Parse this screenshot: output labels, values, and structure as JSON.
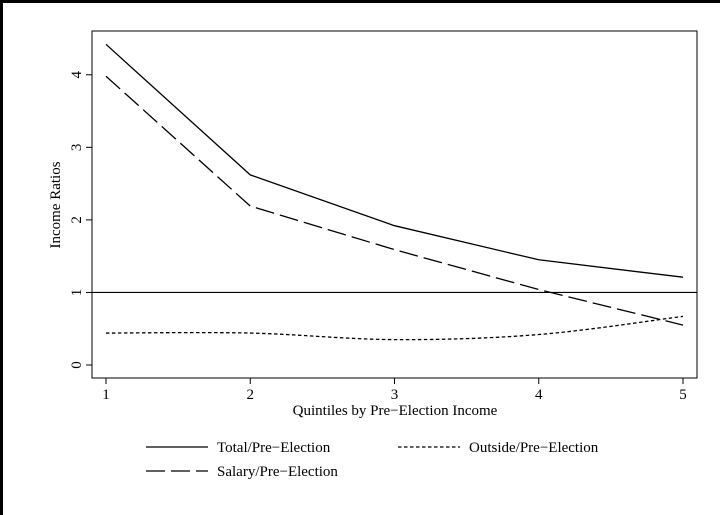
{
  "chart_data": {
    "type": "line",
    "title": "",
    "xlabel": "Quintiles by Pre−Election Income",
    "ylabel": "Income Ratios",
    "x": [
      1,
      2,
      3,
      4,
      5
    ],
    "xticks": [
      "1",
      "2",
      "3",
      "4",
      "5"
    ],
    "yticks": [
      "0",
      "1",
      "2",
      "3",
      "4"
    ],
    "xlim": [
      1,
      5
    ],
    "ylim": [
      0,
      4.5
    ],
    "grid": false,
    "reference_line": {
      "y": 1
    },
    "legend_position": "bottom",
    "series": [
      {
        "name": "Total/Pre−Election",
        "values": [
          4.42,
          2.62,
          1.92,
          1.45,
          1.21
        ],
        "style": "solid",
        "color": "#000000"
      },
      {
        "name": "Outside/Pre−Election",
        "values": [
          0.44,
          0.44,
          0.35,
          0.42,
          0.67
        ],
        "style": "dotted",
        "color": "#000000"
      },
      {
        "name": "Salary/Pre−Election",
        "values": [
          3.98,
          2.19,
          1.59,
          1.04,
          0.55
        ],
        "style": "dashed",
        "color": "#000000"
      }
    ]
  }
}
